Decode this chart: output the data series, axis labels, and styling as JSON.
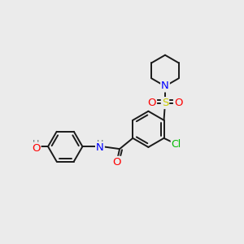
{
  "bg_color": "#ebebeb",
  "bond_color": "#1a1a1a",
  "atom_colors": {
    "N": "#0000ff",
    "O": "#ff0000",
    "S": "#cccc00",
    "Cl": "#00bb00",
    "H": "#607070"
  }
}
